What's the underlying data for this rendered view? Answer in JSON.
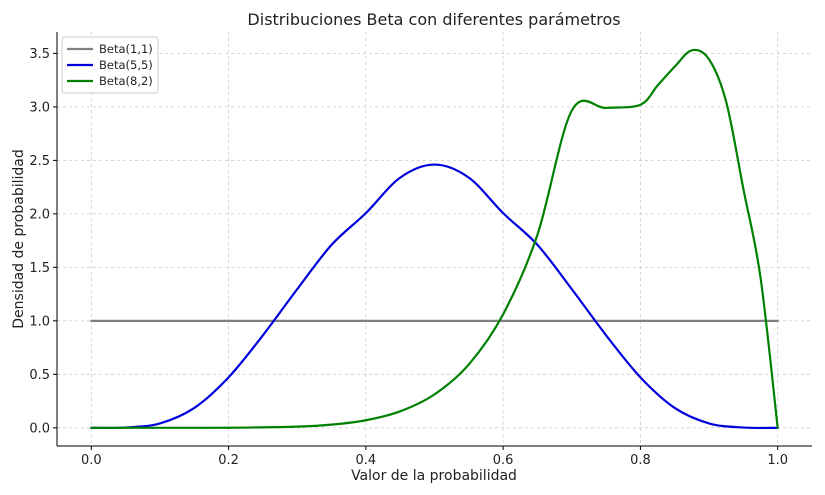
{
  "chart_data": {
    "type": "line",
    "title": "Distribuciones Beta con diferentes parámetros",
    "xlabel": "Valor de la probabilidad",
    "ylabel": "Densidad de probabilidad",
    "xlim": [
      -0.05,
      1.05
    ],
    "ylim": [
      -0.17,
      3.7
    ],
    "xticks": [
      0.0,
      0.2,
      0.4,
      0.6,
      0.8,
      1.0
    ],
    "xtick_labels": [
      "0.0",
      "0.2",
      "0.4",
      "0.6",
      "0.8",
      "1.0"
    ],
    "yticks": [
      0.0,
      0.5,
      1.0,
      1.5,
      2.0,
      2.5,
      3.0,
      3.5
    ],
    "ytick_labels": [
      "0.0",
      "0.5",
      "1.0",
      "1.5",
      "2.0",
      "2.5",
      "3.0",
      "3.5"
    ],
    "grid": true,
    "legend_position": "top-left",
    "series": [
      {
        "name": "Beta(1,1)",
        "color": "#808080",
        "x": [
          0.0,
          0.1,
          0.2,
          0.3,
          0.4,
          0.5,
          0.6,
          0.7,
          0.8,
          0.9,
          1.0
        ],
        "y": [
          1.0,
          1.0,
          1.0,
          1.0,
          1.0,
          1.0,
          1.0,
          1.0,
          1.0,
          1.0,
          1.0
        ]
      },
      {
        "name": "Beta(5,5)",
        "color": "#0000dd",
        "x": [
          0.0,
          0.05,
          0.1,
          0.15,
          0.2,
          0.25,
          0.3,
          0.35,
          0.4,
          0.45,
          0.5,
          0.55,
          0.6,
          0.65,
          0.7,
          0.75,
          0.8,
          0.85,
          0.9,
          0.95,
          1.0
        ],
        "y": [
          0.0,
          0.0026,
          0.0413,
          0.1856,
          0.4719,
          0.8651,
          1.2965,
          1.7098,
          2.0069,
          2.3386,
          2.4609,
          2.3386,
          2.0069,
          1.7098,
          1.2965,
          0.8651,
          0.4719,
          0.1856,
          0.0413,
          0.0026,
          0.0
        ]
      },
      {
        "name": "Beta(8,2)",
        "color": "#008000",
        "x": [
          0.0,
          0.1,
          0.2,
          0.3,
          0.35,
          0.4,
          0.45,
          0.5,
          0.55,
          0.6,
          0.65,
          0.7,
          0.75,
          0.8,
          0.825,
          0.85,
          0.875,
          0.9,
          0.925,
          0.95,
          0.975,
          1.0
        ],
        "y": [
          0.0,
          0.0,
          0.0009,
          0.011,
          0.0296,
          0.0708,
          0.1544,
          0.3125,
          0.5927,
          1.0617,
          1.805,
          2.9652,
          2.99,
          3.0199,
          3.2,
          3.376,
          3.5292,
          3.4443,
          3.0468,
          2.2344,
          1.4049,
          0.0
        ]
      }
    ]
  }
}
